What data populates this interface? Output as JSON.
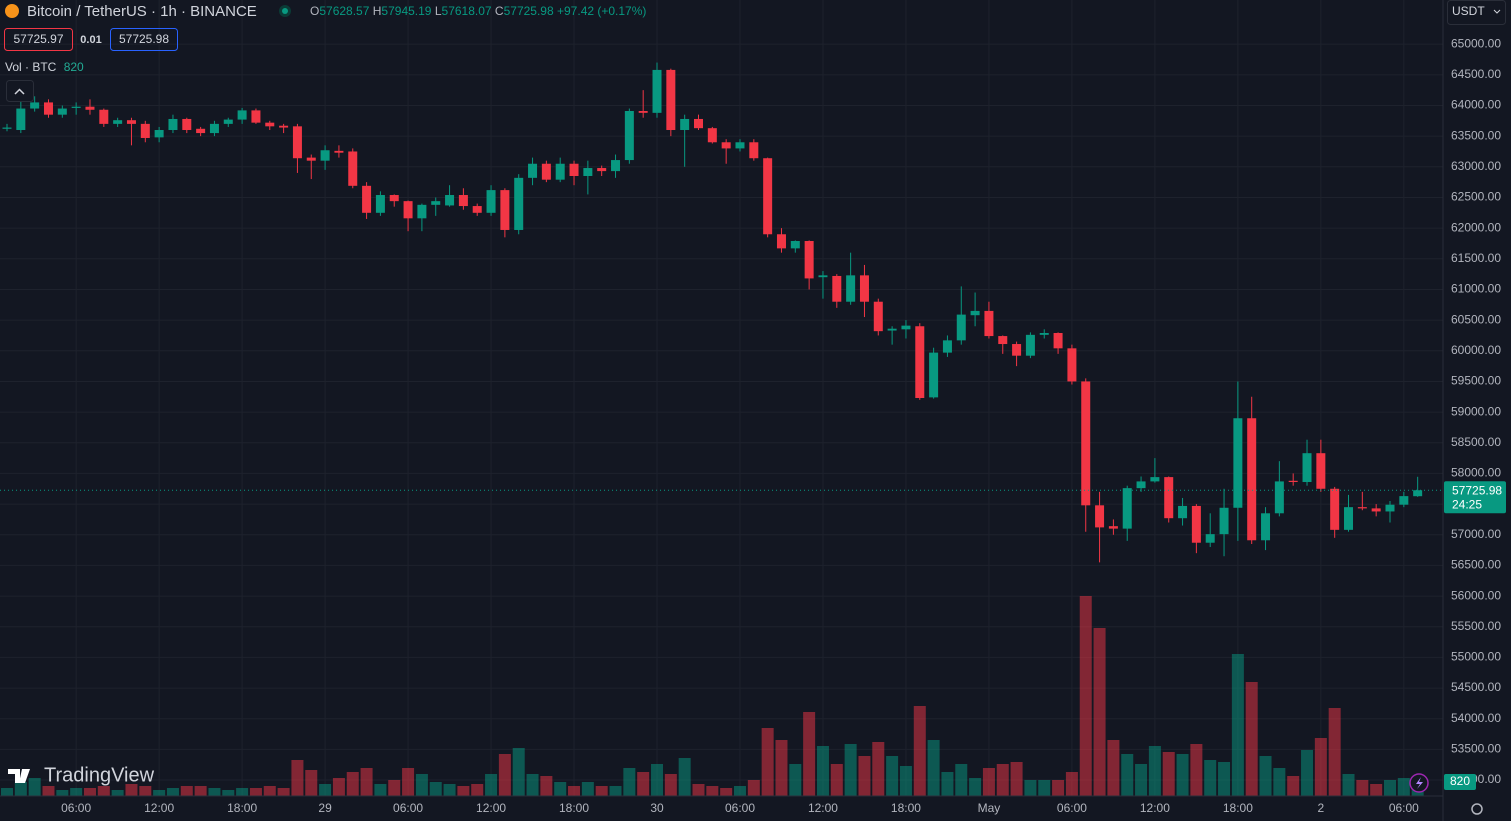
{
  "header": {
    "symbol": "Bitcoin / TetherUS · 1h · BINANCE",
    "o_label": "O",
    "h_label": "H",
    "l_label": "L",
    "c_label": "C",
    "change": "+97.42 (+0.17%)",
    "bid": 57725.97,
    "spread": "0.01",
    "volume_label": "Vol · BTC",
    "currency": "USDT",
    "countdown": "24:25",
    "brand": "TradingView"
  },
  "chart_data": {
    "type": "candlestick",
    "categories": [
      null,
      null,
      null,
      null,
      null,
      "06:00",
      null,
      null,
      null,
      null,
      null,
      "12:00",
      null,
      null,
      null,
      null,
      null,
      "18:00",
      null,
      null,
      null,
      null,
      null,
      "29",
      null,
      null,
      null,
      null,
      null,
      "06:00",
      null,
      null,
      null,
      null,
      null,
      "12:00",
      null,
      null,
      null,
      null,
      null,
      "18:00",
      null,
      null,
      null,
      null,
      null,
      "30",
      null,
      null,
      null,
      null,
      null,
      "06:00",
      null,
      null,
      null,
      null,
      null,
      "12:00",
      null,
      null,
      null,
      null,
      null,
      "18:00",
      null,
      null,
      null,
      null,
      null,
      "May",
      null,
      null,
      null,
      null,
      null,
      "06:00",
      null,
      null,
      null,
      null,
      null,
      "12:00",
      null,
      null,
      null,
      null,
      null,
      "18:00",
      null,
      null,
      null,
      null,
      null,
      "2",
      null,
      null,
      null,
      null,
      null,
      "06:00",
      null
    ],
    "open": [
      63620,
      63600,
      63950,
      64050,
      63850,
      63960,
      63980,
      63930,
      63700,
      63760,
      63700,
      63480,
      63600,
      63780,
      63620,
      63550,
      63700,
      63770,
      63920,
      63720,
      63670,
      63660,
      63150,
      63100,
      63260,
      63250,
      62690,
      62250,
      62540,
      62440,
      62160,
      62380,
      62370,
      62540,
      62360,
      62250,
      62620,
      61970,
      62820,
      63050,
      62790,
      63050,
      62850,
      62980,
      62930,
      63110,
      63910,
      63880,
      64580,
      63600,
      63780,
      63630,
      63400,
      63300,
      63400,
      63140,
      61900,
      61670,
      61790,
      61200,
      61220,
      60800,
      61230,
      60800,
      60330,
      60350,
      60400,
      59240,
      59970,
      60170,
      60580,
      60650,
      60240,
      60110,
      59920,
      60260,
      60290,
      60040,
      59500,
      57480,
      57140,
      57100,
      57760,
      57870,
      57940,
      57270,
      57470,
      56870,
      57010,
      57440,
      58900,
      56910,
      57350,
      57880,
      57860,
      58330,
      57750,
      57080,
      57450,
      57430,
      57380,
      57490,
      57628.57
    ],
    "high": [
      63700,
      64150,
      64150,
      64100,
      64000,
      64050,
      64100,
      63950,
      63800,
      63800,
      63750,
      63650,
      63850,
      63800,
      63650,
      63750,
      63800,
      63960,
      63950,
      63750,
      63700,
      63700,
      63200,
      63350,
      63350,
      63300,
      62750,
      62600,
      62550,
      62450,
      62400,
      62500,
      62700,
      62650,
      62400,
      62700,
      62650,
      62880,
      63150,
      63100,
      63150,
      63100,
      63100,
      63020,
      63200,
      63950,
      64250,
      64700,
      64600,
      63850,
      63850,
      63650,
      63450,
      63450,
      63450,
      63150,
      62000,
      61800,
      61800,
      61300,
      61250,
      61600,
      61400,
      60850,
      60400,
      60500,
      60450,
      60050,
      60250,
      61050,
      60950,
      60800,
      60250,
      60150,
      60300,
      60350,
      60300,
      60100,
      59550,
      57700,
      57250,
      57800,
      57950,
      58250,
      57950,
      57600,
      57500,
      57350,
      57750,
      59500,
      59250,
      57450,
      58200,
      58000,
      58550,
      58550,
      57780,
      57650,
      57700,
      57500,
      57550,
      57700,
      57945.19
    ],
    "low": [
      63580,
      63550,
      63900,
      63800,
      63800,
      63850,
      63850,
      63650,
      63650,
      63350,
      63400,
      63400,
      63550,
      63550,
      63500,
      63500,
      63650,
      63700,
      63700,
      63600,
      63550,
      62900,
      62800,
      62950,
      63150,
      62650,
      62150,
      62200,
      62350,
      61950,
      61950,
      62200,
      62350,
      62300,
      62200,
      62200,
      61850,
      61900,
      62700,
      62750,
      62750,
      62700,
      62550,
      62850,
      62820,
      63050,
      63800,
      63800,
      63500,
      63000,
      63600,
      63380,
      63050,
      63250,
      63100,
      61850,
      61600,
      61600,
      61000,
      60850,
      60700,
      60750,
      60550,
      60250,
      60100,
      60200,
      59200,
      59220,
      59900,
      60100,
      60400,
      60200,
      59950,
      59750,
      59880,
      60200,
      59950,
      59450,
      57050,
      56550,
      57000,
      56900,
      57700,
      57850,
      57200,
      57150,
      56700,
      56800,
      56650,
      56900,
      56850,
      56750,
      57300,
      57800,
      57800,
      57700,
      56950,
      57050,
      57400,
      57300,
      57200,
      57450,
      57618.07
    ],
    "close": [
      63640,
      63950,
      64050,
      63850,
      63950,
      63980,
      63930,
      63700,
      63760,
      63700,
      63470,
      63600,
      63780,
      63600,
      63550,
      63700,
      63770,
      63920,
      63720,
      63660,
      63640,
      63140,
      63100,
      63270,
      63230,
      62690,
      62250,
      62540,
      62440,
      62160,
      62380,
      62440,
      62540,
      62360,
      62250,
      62620,
      61970,
      62820,
      63050,
      62790,
      63050,
      62850,
      62980,
      62930,
      63110,
      63910,
      63880,
      64580,
      63600,
      63780,
      63630,
      63400,
      63300,
      63400,
      63140,
      61900,
      61670,
      61790,
      61180,
      61230,
      60800,
      61230,
      60800,
      60320,
      60360,
      60410,
      59230,
      59970,
      60170,
      60590,
      60650,
      60240,
      60110,
      59920,
      60260,
      60290,
      60040,
      59500,
      57480,
      57120,
      57100,
      57760,
      57870,
      57940,
      57270,
      57470,
      56870,
      57010,
      57440,
      58900,
      56910,
      57350,
      57870,
      57860,
      58330,
      57750,
      57080,
      57450,
      57430,
      57380,
      57490,
      57630,
      57725.98
    ],
    "volume": [
      384,
      672,
      864,
      480,
      288,
      384,
      384,
      480,
      288,
      576,
      480,
      288,
      384,
      480,
      480,
      384,
      288,
      384,
      384,
      480,
      384,
      1728,
      1248,
      576,
      864,
      1152,
      1344,
      576,
      768,
      1344,
      1056,
      672,
      576,
      480,
      576,
      1056,
      2016,
      2304,
      1056,
      960,
      672,
      480,
      672,
      480,
      480,
      1344,
      1152,
      1536,
      1056,
      1824,
      576,
      480,
      384,
      480,
      768,
      3264,
      2688,
      1536,
      4032,
      2400,
      1536,
      2496,
      1920,
      2592,
      1920,
      1440,
      4320,
      2688,
      1152,
      1536,
      864,
      1344,
      1536,
      1632,
      768,
      768,
      768,
      1152,
      9600,
      8064,
      2688,
      2016,
      1536,
      2400,
      2112,
      2016,
      2496,
      1728,
      1632,
      6816,
      5472,
      1920,
      1344,
      960,
      2208,
      2784,
      4224,
      1056,
      768,
      576,
      768,
      864,
      820
    ],
    "ylim": [
      52740,
      65720
    ],
    "yticks": [
      {
        "value": 53000,
        "label": "53000.00"
      },
      {
        "value": 53500,
        "label": "53500.00"
      },
      {
        "value": 54000,
        "label": "54000.00"
      },
      {
        "value": 54500,
        "label": "54500.00"
      },
      {
        "value": 55000,
        "label": "55000.00"
      },
      {
        "value": 55500,
        "label": "55500.00"
      },
      {
        "value": 56000,
        "label": "56000.00"
      },
      {
        "value": 56500,
        "label": "56500.00"
      },
      {
        "value": 57000,
        "label": "57000.00"
      },
      {
        "value": 57500,
        "label": "57500.00"
      },
      {
        "value": 58000,
        "label": "58000.00"
      },
      {
        "value": 58500,
        "label": "58500.00"
      },
      {
        "value": 59000,
        "label": "59000.00"
      },
      {
        "value": 59500,
        "label": "59500.00"
      },
      {
        "value": 60000,
        "label": "60000.00"
      },
      {
        "value": 60500,
        "label": "60500.00"
      },
      {
        "value": 61000,
        "label": "61000.00"
      },
      {
        "value": 61500,
        "label": "61500.00"
      },
      {
        "value": 62000,
        "label": "62000.00"
      },
      {
        "value": 62500,
        "label": "62500.00"
      },
      {
        "value": 63000,
        "label": "63000.00"
      },
      {
        "value": 63500,
        "label": "63500.00"
      },
      {
        "value": 64000,
        "label": "64000.00"
      },
      {
        "value": 64500,
        "label": "64500.00"
      },
      {
        "value": 65000,
        "label": "65000.00"
      }
    ],
    "grid": true,
    "up_color": "#089981",
    "down_color": "#f23645",
    "last_price_line": true
  }
}
